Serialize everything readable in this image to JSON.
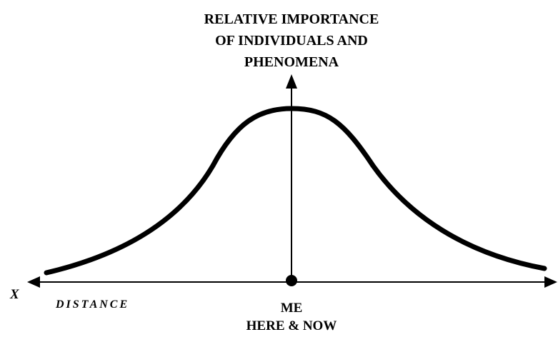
{
  "title": {
    "lines": [
      "RELATIVE IMPORTANCE",
      "OF INDIVIDUALS AND",
      "PHENOMENA"
    ]
  },
  "x_axis": {
    "symbol": "X",
    "label": "DISTANCE"
  },
  "origin": {
    "lines": [
      "ME",
      "HERE & NOW"
    ]
  }
}
